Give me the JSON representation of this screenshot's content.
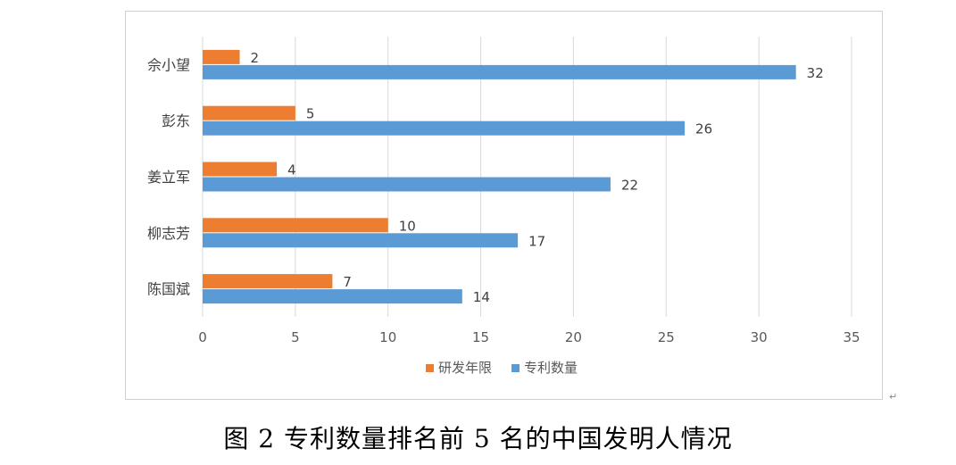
{
  "caption": "图 2 专利数量排名前 5 名的中国发明人情况",
  "para_mark": "↵",
  "colors": {
    "research_years": "#ED7D31",
    "patents": "#5B9BD5",
    "grid": "#d9d9d9"
  },
  "chart_data": {
    "type": "bar",
    "orientation": "horizontal",
    "categories": [
      "佘小望",
      "彭东",
      "姜立军",
      "柳志芳",
      "陈国斌"
    ],
    "series": [
      {
        "name": "研发年限",
        "values": [
          2,
          5,
          4,
          10,
          7
        ],
        "color": "#ED7D31"
      },
      {
        "name": "专利数量",
        "values": [
          32,
          26,
          22,
          17,
          14
        ],
        "color": "#5B9BD5"
      }
    ],
    "xlim": [
      0,
      35
    ],
    "xticks": [
      0,
      5,
      10,
      15,
      20,
      25,
      30,
      35
    ],
    "grid": true,
    "legend_position": "bottom",
    "data_labels": true
  }
}
